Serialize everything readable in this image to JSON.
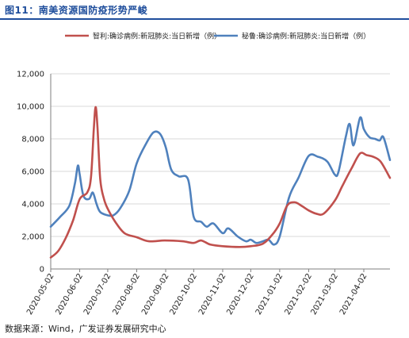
{
  "header": {
    "title": "图11：南美资源国防疫形势严峻"
  },
  "footer": {
    "source": "数据来源：Wind，广发证券发展研究中心"
  },
  "chart_data": {
    "type": "line",
    "title": "图11：南美资源国防疫形势严峻",
    "ylim": [
      0,
      12000
    ],
    "yticks": [
      0,
      2000,
      4000,
      6000,
      8000,
      10000,
      12000
    ],
    "ytick_labels": [
      "0",
      "2,000",
      "4,000",
      "6,000",
      "8,000",
      "10,000",
      "12,000"
    ],
    "xlim": [
      "2020-05-02",
      "2021-04-30"
    ],
    "xticks": [
      "2020-05-02",
      "2020-06-02",
      "2020-07-02",
      "2020-08-02",
      "2020-09-02",
      "2020-10-02",
      "2020-11-02",
      "2020-12-02",
      "2021-01-02",
      "2021-02-02",
      "2021-03-02",
      "2021-04-02"
    ],
    "grid": "horizontal",
    "legend_position": "top",
    "series": [
      {
        "name": "智利:确诊病例:新冠肺炎:当日新增（例）",
        "color": "#c0504d",
        "points": [
          [
            "2020-05-02",
            700
          ],
          [
            "2020-05-10",
            1100
          ],
          [
            "2020-05-18",
            1900
          ],
          [
            "2020-05-26",
            3000
          ],
          [
            "2020-06-02",
            4300
          ],
          [
            "2020-06-10",
            4700
          ],
          [
            "2020-06-14",
            5600
          ],
          [
            "2020-06-17",
            8500
          ],
          [
            "2020-06-19",
            9950
          ],
          [
            "2020-06-21",
            8700
          ],
          [
            "2020-06-24",
            5500
          ],
          [
            "2020-06-28",
            4300
          ],
          [
            "2020-07-02",
            3700
          ],
          [
            "2020-07-10",
            2900
          ],
          [
            "2020-07-20",
            2200
          ],
          [
            "2020-08-02",
            1950
          ],
          [
            "2020-08-15",
            1700
          ],
          [
            "2020-09-01",
            1750
          ],
          [
            "2020-09-20",
            1700
          ],
          [
            "2020-10-02",
            1600
          ],
          [
            "2020-10-10",
            1750
          ],
          [
            "2020-10-20",
            1500
          ],
          [
            "2020-11-02",
            1400
          ],
          [
            "2020-11-20",
            1350
          ],
          [
            "2020-12-02",
            1400
          ],
          [
            "2020-12-15",
            1550
          ],
          [
            "2020-12-25",
            2100
          ],
          [
            "2021-01-02",
            2800
          ],
          [
            "2021-01-10",
            3900
          ],
          [
            "2021-01-18",
            4100
          ],
          [
            "2021-01-25",
            3900
          ],
          [
            "2021-02-02",
            3600
          ],
          [
            "2021-02-10",
            3400
          ],
          [
            "2021-02-18",
            3400
          ],
          [
            "2021-03-02",
            4200
          ],
          [
            "2021-03-10",
            5100
          ],
          [
            "2021-03-20",
            6200
          ],
          [
            "2021-03-29",
            7100
          ],
          [
            "2021-04-05",
            7000
          ],
          [
            "2021-04-12",
            6900
          ],
          [
            "2021-04-20",
            6600
          ],
          [
            "2021-04-30",
            5600
          ]
        ]
      },
      {
        "name": "秘鲁:确诊病例:新冠肺炎:当日新增（例）",
        "color": "#4f81bd",
        "points": [
          [
            "2020-05-02",
            2600
          ],
          [
            "2020-05-12",
            3200
          ],
          [
            "2020-05-22",
            3900
          ],
          [
            "2020-05-28",
            5300
          ],
          [
            "2020-05-31",
            6350
          ],
          [
            "2020-06-02",
            5800
          ],
          [
            "2020-06-06",
            4500
          ],
          [
            "2020-06-12",
            4300
          ],
          [
            "2020-06-16",
            4700
          ],
          [
            "2020-06-20",
            4000
          ],
          [
            "2020-06-24",
            3500
          ],
          [
            "2020-07-02",
            3300
          ],
          [
            "2020-07-08",
            3300
          ],
          [
            "2020-07-15",
            3700
          ],
          [
            "2020-07-25",
            4800
          ],
          [
            "2020-08-02",
            6500
          ],
          [
            "2020-08-12",
            7700
          ],
          [
            "2020-08-20",
            8400
          ],
          [
            "2020-08-27",
            8300
          ],
          [
            "2020-09-02",
            7500
          ],
          [
            "2020-09-08",
            6100
          ],
          [
            "2020-09-16",
            5700
          ],
          [
            "2020-09-26",
            5500
          ],
          [
            "2020-10-02",
            3200
          ],
          [
            "2020-10-10",
            2900
          ],
          [
            "2020-10-16",
            2600
          ],
          [
            "2020-10-23",
            2800
          ],
          [
            "2020-11-02",
            2200
          ],
          [
            "2020-11-08",
            2500
          ],
          [
            "2020-11-18",
            2000
          ],
          [
            "2020-11-27",
            1700
          ],
          [
            "2020-12-02",
            1800
          ],
          [
            "2020-12-08",
            1600
          ],
          [
            "2020-12-15",
            1700
          ],
          [
            "2020-12-21",
            1800
          ],
          [
            "2020-12-27",
            1500
          ],
          [
            "2021-01-02",
            2000
          ],
          [
            "2021-01-12",
            4400
          ],
          [
            "2021-01-22",
            5600
          ],
          [
            "2021-02-02",
            6950
          ],
          [
            "2021-02-12",
            6900
          ],
          [
            "2021-02-22",
            6600
          ],
          [
            "2021-03-02",
            5800
          ],
          [
            "2021-03-06",
            6000
          ],
          [
            "2021-03-14",
            8200
          ],
          [
            "2021-03-18",
            8900
          ],
          [
            "2021-03-22",
            7600
          ],
          [
            "2021-03-29",
            9300
          ],
          [
            "2021-04-02",
            8600
          ],
          [
            "2021-04-08",
            8100
          ],
          [
            "2021-04-14",
            8000
          ],
          [
            "2021-04-19",
            7900
          ],
          [
            "2021-04-23",
            8100
          ],
          [
            "2021-04-30",
            6700
          ]
        ]
      }
    ]
  }
}
